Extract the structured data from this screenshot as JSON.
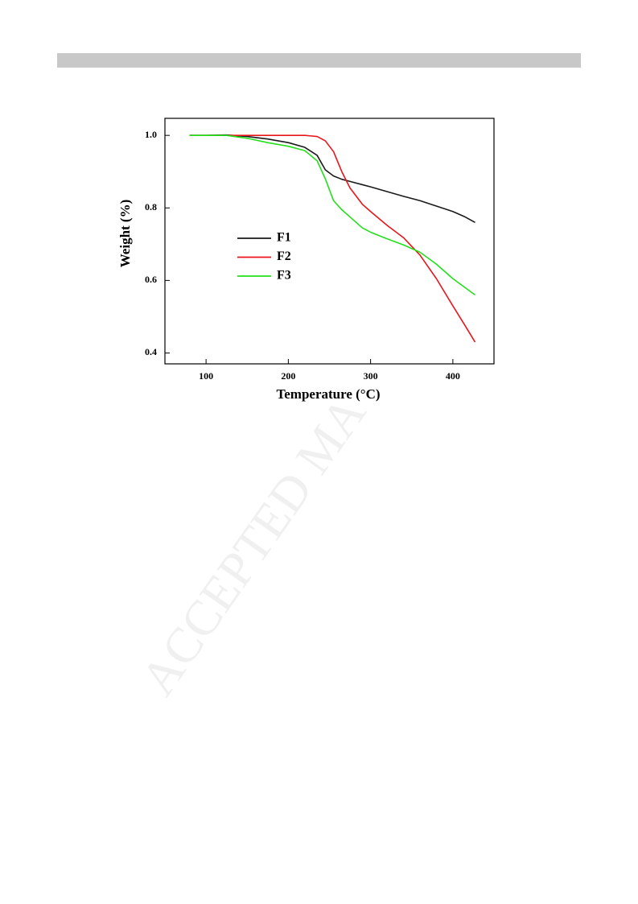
{
  "watermark": "ACCEPTED MA",
  "chart_data": {
    "type": "line",
    "xlabel": "Temperature (°C)",
    "ylabel": "Weight (%)",
    "x": [
      80,
      100,
      125,
      150,
      175,
      200,
      220,
      235,
      245,
      255,
      265,
      275,
      290,
      300,
      320,
      340,
      360,
      380,
      400,
      415,
      427
    ],
    "series": [
      {
        "name": "F1",
        "color": "#1a1a1a",
        "values": [
          1.0,
          1.0,
          1.001,
          0.997,
          0.99,
          0.98,
          0.967,
          0.945,
          0.905,
          0.888,
          0.879,
          0.873,
          0.864,
          0.858,
          0.845,
          0.832,
          0.82,
          0.805,
          0.79,
          0.775,
          0.76
        ]
      },
      {
        "name": "F2",
        "color": "#e8161b",
        "values": [
          1.0,
          1.0,
          1.0,
          1.0,
          1.0,
          1.0,
          1.0,
          0.997,
          0.985,
          0.955,
          0.9,
          0.855,
          0.81,
          0.79,
          0.752,
          0.718,
          0.67,
          0.605,
          0.53,
          0.475,
          0.43
        ]
      },
      {
        "name": "F3",
        "color": "#22e01a",
        "values": [
          1.0,
          1.0,
          1.0,
          0.992,
          0.98,
          0.97,
          0.958,
          0.93,
          0.88,
          0.82,
          0.795,
          0.775,
          0.745,
          0.733,
          0.715,
          0.698,
          0.678,
          0.645,
          0.605,
          0.58,
          0.56
        ]
      }
    ],
    "xlim": [
      50,
      450
    ],
    "xticks": [
      100,
      200,
      300,
      400
    ],
    "ylim": [
      0.37,
      1.047
    ],
    "yticks": [
      {
        "value": 1,
        "label": "1.0"
      },
      0.8,
      0.6,
      0.4
    ],
    "legend": "center-left"
  }
}
